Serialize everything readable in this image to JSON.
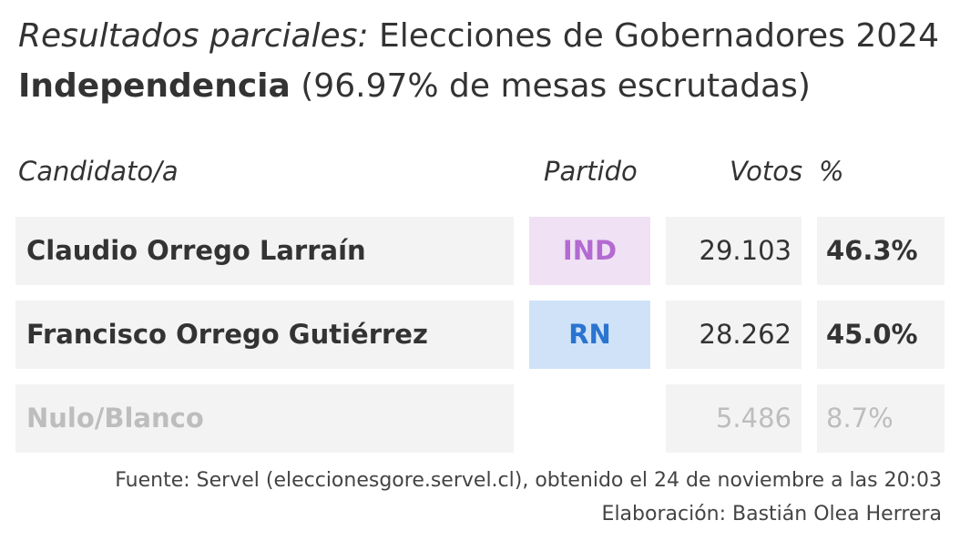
{
  "title": {
    "prefix_italic": "Resultados parciales:",
    "main": "Elecciones de Gobernadores 2024",
    "region": "Independencia",
    "progress_text": "(96.97% de mesas escrutadas)"
  },
  "columns": {
    "candidate": "Candidato/a",
    "party": "Partido",
    "votes": "Votos",
    "pct": "%"
  },
  "chart_data": {
    "type": "table",
    "columns": [
      "Candidato/a",
      "Partido",
      "Votos",
      "%"
    ],
    "rows": [
      {
        "candidate": "Claudio Orrego Larraín",
        "party": "IND",
        "votes": "29.103",
        "pct": "46.3%",
        "votes_value": 29103,
        "pct_value": 46.3,
        "party_color": "#b36ad1",
        "party_bg": "#f0e1f5"
      },
      {
        "candidate": "Francisco Orrego Gutiérrez",
        "party": "RN",
        "votes": "28.262",
        "pct": "45.0%",
        "votes_value": 28262,
        "pct_value": 45.0,
        "party_color": "#2a74d0",
        "party_bg": "#cfe2f8"
      },
      {
        "candidate": "Nulo/Blanco",
        "party": "",
        "votes": "5.486",
        "pct": "8.7%",
        "votes_value": 5486,
        "pct_value": 8.7
      }
    ]
  },
  "footer": {
    "source": "Fuente: Servel (eleccionesgore.servel.cl), obtenido el 24 de noviembre a las 20:03",
    "author": "Elaboración: Bastián Olea Herrera"
  }
}
